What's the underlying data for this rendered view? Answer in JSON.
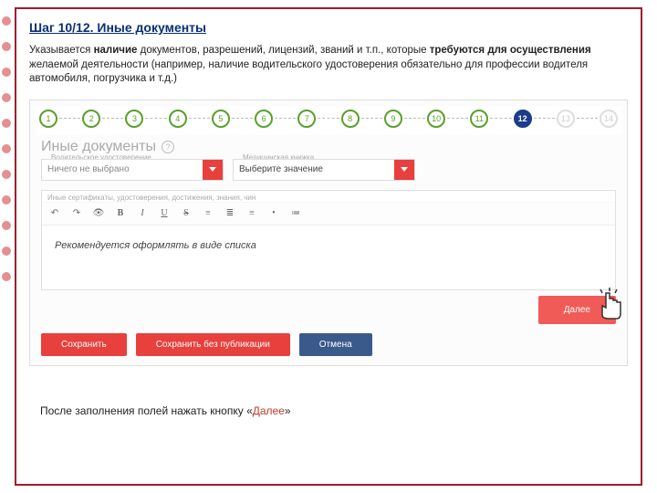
{
  "title": "Шаг 10/12. Иные документы",
  "desc_p1": "Указывается ",
  "desc_b1": "наличие",
  "desc_p2": " документов, разрешений, лицензий, званий и т.п., которые ",
  "desc_b2": "требуются для осуществления",
  "desc_p3": " желаемой деятельности (например, наличие водительского удостоверения обязательно для профессии водителя автомобиля, погрузчика и т.д.)",
  "stepper": {
    "steps": [
      "1",
      "2",
      "3",
      "4",
      "5",
      "6",
      "7",
      "8",
      "9",
      "10",
      "11",
      "12",
      "13",
      "14"
    ],
    "active_index": 11,
    "done_color": "#5aa02c",
    "active_color": "#1b3d8a",
    "future_color": "#dddddd"
  },
  "section_label": "Иные документы",
  "help_char": "?",
  "field1": {
    "title": "Водительское удостоверение",
    "value": "Ничего не выбрано"
  },
  "field2": {
    "title": "Медицинская книжка",
    "value": "Выберите значение"
  },
  "editor_label": "Иные сертификаты, удостоверения, достижения, знания, чин",
  "toolbar_icons": [
    "↶",
    "↷",
    "👁",
    "B",
    "I",
    "U",
    "S",
    "≡",
    "≣",
    "≡",
    "•",
    "≔"
  ],
  "editor_body": "Рекомендуется оформлять в виде списка",
  "btn_next": "Далее",
  "btn_save": "Сохранить",
  "btn_save_nopub": "Сохранить без публикации",
  "btn_cancel": "Отмена",
  "footer_p1": "После заполнения полей нажать кнопку «",
  "footer_red": "Далее",
  "footer_p2": "»",
  "colors": {
    "frame": "#a01b2f",
    "accent_red": "#e8403c",
    "accent_blue": "#3b5a8c",
    "title_blue": "#0b2f73"
  }
}
